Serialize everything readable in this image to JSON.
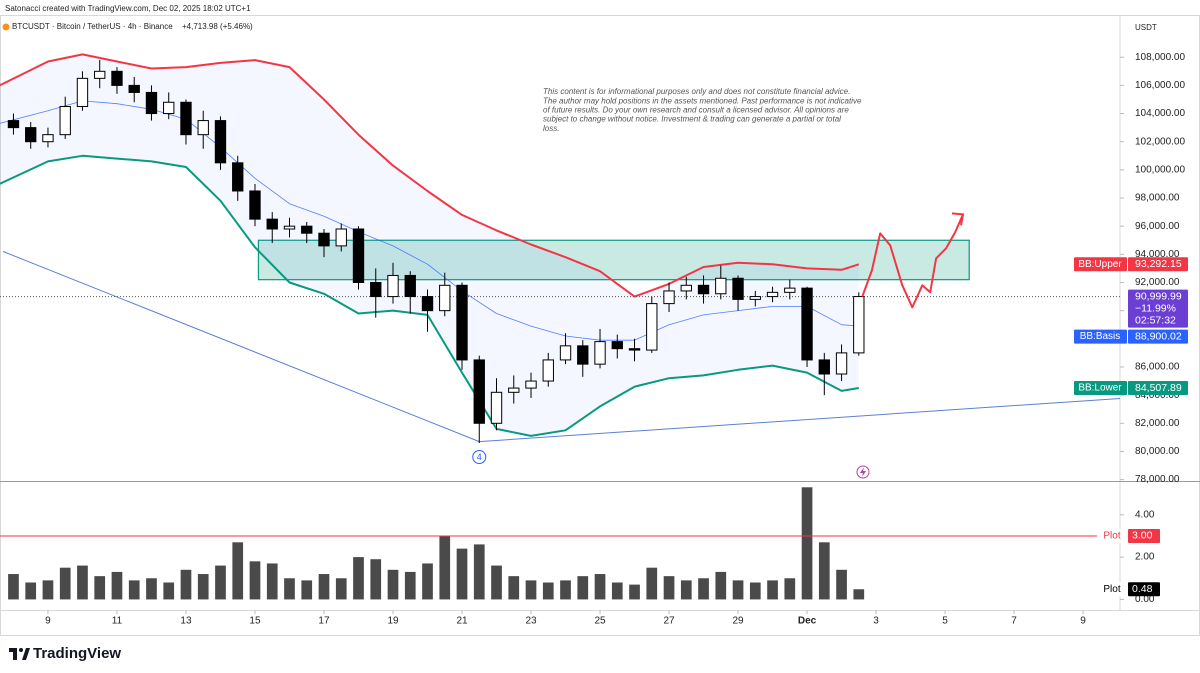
{
  "header": "Satonacci created with TradingView.com, Dec 02, 2025 18:02 UTC+1",
  "symbol": "BTCUSDT · Bitcoin / TetherUS · 4h · Binance",
  "change": "+4,713.98 (+5.46%)",
  "currency": "USDT",
  "footer_brand": "TradingView",
  "disclaimer": [
    "This content is for informational purposes only and does not constitute financial advice.",
    "The author may hold positions in the assets mentioned. Past performance is not indicative",
    "of future results. Do your own research and consult a licensed advisor. All opinions are",
    "subject to change without notice. Investment & trading can generate a partial or total",
    "loss."
  ],
  "chart_data": [
    {
      "type": "candlestick",
      "xlim": [
        7.61,
        40.07
      ],
      "ylim": [
        77900,
        111000
      ],
      "yticks": [
        {
          "value": 108000,
          "label": "108,000.00"
        },
        {
          "value": 106000,
          "label": "106,000.00"
        },
        {
          "value": 104000,
          "label": "104,000.00"
        },
        {
          "value": 102000,
          "label": "102,000.00"
        },
        {
          "value": 100000,
          "label": "100,000.00"
        },
        {
          "value": 98000,
          "label": "98,000.00"
        },
        {
          "value": 96000,
          "label": "96,000.00"
        },
        {
          "value": 94000,
          "label": "94,000.00"
        },
        {
          "value": 92000,
          "label": "92,000.00"
        },
        {
          "value": 90000,
          "label": "90,000.00"
        },
        {
          "value": 88000,
          "label": "88,000.00"
        },
        {
          "value": 86000,
          "label": "86,000.00"
        },
        {
          "value": 84000,
          "label": "84,000.00"
        },
        {
          "value": 82000,
          "label": "82,000.00"
        },
        {
          "value": 80000,
          "label": "80,000.00"
        },
        {
          "value": 78000,
          "label": "78,000.00"
        }
      ],
      "candles": {
        "up_color": "#ffffff",
        "down_color": "#000000",
        "x": [
          8,
          8.5,
          9,
          9.5,
          10,
          10.5,
          11,
          11.5,
          12,
          12.5,
          13,
          13.5,
          14,
          14.5,
          15,
          15.5,
          16,
          16.5,
          17,
          17.5,
          18,
          18.5,
          19,
          19.5,
          20,
          20.5,
          21,
          21.5,
          22,
          22.5,
          23,
          23.5,
          24,
          24.5,
          25,
          25.5,
          26,
          26.5,
          27,
          27.5,
          28,
          28.5,
          29,
          29.5,
          30,
          30.5,
          31,
          31.5,
          32,
          32.5
        ],
        "open": [
          103500,
          103000,
          102000,
          102500,
          104500,
          106500,
          107000,
          106000,
          105500,
          104000,
          104800,
          102500,
          103500,
          100500,
          98500,
          96500,
          95800,
          96000,
          95500,
          94600,
          95800,
          92000,
          91000,
          92500,
          91000,
          90000,
          91800,
          86500,
          82000,
          84200,
          84500,
          85000,
          86500,
          87500,
          86200,
          87800,
          87300,
          87200,
          90500,
          91400,
          91800,
          91200,
          92300,
          90800,
          91000,
          91300,
          91600,
          86500,
          85500,
          87000
        ],
        "high": [
          104000,
          103400,
          103000,
          105200,
          107000,
          107800,
          107300,
          106600,
          106000,
          105500,
          105000,
          104200,
          103800,
          101000,
          99000,
          97000,
          96600,
          96300,
          95800,
          96200,
          96000,
          93000,
          93400,
          92800,
          91500,
          92700,
          92000,
          86800,
          85200,
          85400,
          85600,
          87000,
          88400,
          87900,
          88700,
          88300,
          88000,
          91000,
          92000,
          92400,
          92500,
          93200,
          92500,
          91400,
          91700,
          92200,
          91700,
          87000,
          87600,
          91300
        ],
        "low": [
          102500,
          101500,
          101600,
          102200,
          104200,
          105800,
          105400,
          104800,
          103500,
          103600,
          101800,
          101500,
          100000,
          97800,
          96000,
          94800,
          95200,
          94800,
          93800,
          94200,
          91500,
          89500,
          90500,
          89800,
          88500,
          89600,
          85800,
          80600,
          81500,
          83400,
          83800,
          84600,
          86200,
          85300,
          85900,
          86600,
          86400,
          87000,
          89900,
          90800,
          90500,
          90800,
          90000,
          90300,
          90600,
          90800,
          86000,
          84000,
          85000,
          86800
        ],
        "close": [
          103000,
          102000,
          102500,
          104500,
          106500,
          107000,
          106000,
          105500,
          104000,
          104800,
          102500,
          103500,
          100500,
          98500,
          96500,
          95800,
          96000,
          95500,
          94600,
          95800,
          92000,
          91000,
          92500,
          91000,
          90000,
          91800,
          86500,
          82000,
          84200,
          84500,
          85000,
          86500,
          87500,
          86200,
          87800,
          87300,
          87200,
          90500,
          91400,
          91800,
          91200,
          92300,
          90800,
          91000,
          91300,
          91600,
          86500,
          85500,
          87000,
          90999.99
        ]
      },
      "last_price": {
        "value": 90999.99,
        "label": "90,999.99",
        "change": "−11.99%",
        "countdown": "02:57:32",
        "color": "#6b3fd4"
      },
      "series": [
        {
          "name": "BB:Upper",
          "color": "#f23645",
          "last_value_label": "93,292.15",
          "x": [
            7.6,
            9,
            10,
            11,
            12,
            13,
            14,
            15,
            16,
            17,
            18,
            19,
            20,
            21,
            22,
            23,
            24,
            25,
            26,
            27,
            28,
            29,
            30,
            31,
            32,
            32.5
          ],
          "values": [
            106000,
            107700,
            108200,
            107700,
            107200,
            107300,
            107600,
            107800,
            107300,
            105000,
            102500,
            100300,
            98500,
            96800,
            95700,
            94700,
            93800,
            92800,
            91000,
            91900,
            93100,
            93400,
            93300,
            93000,
            92900,
            93292.15
          ]
        },
        {
          "name": "BB:Basis",
          "color": "#2962ff",
          "last_value_label": "88,900.02",
          "x": [
            7.6,
            9,
            10,
            11,
            12,
            13,
            14,
            15,
            16,
            17,
            18,
            19,
            20,
            21,
            22,
            23,
            24,
            25,
            26,
            27,
            28,
            29,
            30,
            31,
            32,
            32.5
          ],
          "values": [
            103300,
            104200,
            104900,
            104700,
            104300,
            103600,
            101600,
            99400,
            97600,
            96700,
            95600,
            94600,
            93300,
            91400,
            89800,
            88900,
            88200,
            87900,
            87900,
            89000,
            89700,
            90000,
            90300,
            90300,
            89000,
            88900.02
          ]
        },
        {
          "name": "BB:Lower",
          "color": "#089981",
          "last_value_label": "84,507.89",
          "x": [
            7.6,
            9,
            10,
            11,
            12,
            13,
            14,
            15,
            16,
            17,
            18,
            19,
            20,
            21,
            22,
            23,
            24,
            25,
            26,
            27,
            28,
            29,
            30,
            31,
            32,
            32.5
          ],
          "values": [
            99000,
            100600,
            101000,
            100800,
            100600,
            100200,
            97800,
            94500,
            92000,
            91200,
            89800,
            90000,
            89700,
            85600,
            81600,
            81100,
            81500,
            83200,
            84600,
            85200,
            85400,
            85800,
            86100,
            85600,
            84300,
            84507.89
          ]
        }
      ],
      "zone": {
        "x": [
          15.1,
          35.7
        ],
        "y": [
          92200,
          95000
        ],
        "color": "#089981"
      },
      "trendlines": [
        {
          "x": [
            7.7,
            21.5
          ],
          "y": [
            94200,
            80700
          ],
          "color": "#5b7fd6"
        },
        {
          "x": [
            21.5,
            40.07
          ],
          "y": [
            80700,
            83760
          ],
          "color": "#5b7fd6"
        }
      ],
      "projection": {
        "color": "#f23645",
        "x": [
          32.6,
          32.88,
          33.12,
          33.41,
          33.76,
          34.05,
          34.34,
          34.57,
          34.74,
          35.03,
          35.29,
          35.52
        ],
        "y": [
          91000,
          92860,
          95490,
          94640,
          91800,
          90230,
          91800,
          91300,
          93710,
          94430,
          95560,
          96840
        ]
      },
      "annotations": [
        {
          "text": "4"
        }
      ]
    },
    {
      "type": "bar",
      "xlim": [
        7.61,
        40.07
      ],
      "ylim": [
        -0.5,
        5.55
      ],
      "yticks": [
        {
          "value": 4,
          "label": "4.00"
        },
        {
          "value": 2,
          "label": "2.00"
        },
        {
          "value": 0,
          "label": "0.00"
        }
      ],
      "xticks": [
        9,
        11,
        13,
        15,
        17,
        19,
        21,
        23,
        25,
        27,
        29,
        {
          "value": 31,
          "label": "Dec"
        },
        {
          "value": 33,
          "label": "3"
        },
        {
          "value": 35,
          "label": "5"
        },
        {
          "value": 37,
          "label": "7"
        },
        {
          "value": 39,
          "label": "9"
        }
      ],
      "series": [
        {
          "name": "Plot",
          "color": "#4a4a4a",
          "label_color": "#000000",
          "last_value_label": "0.48",
          "x": [
            8,
            8.5,
            9,
            9.5,
            10,
            10.5,
            11,
            11.5,
            12,
            12.5,
            13,
            13.5,
            14,
            14.5,
            15,
            15.5,
            16,
            16.5,
            17,
            17.5,
            18,
            18.5,
            19,
            19.5,
            20,
            20.5,
            21,
            21.5,
            22,
            22.5,
            23,
            23.5,
            24,
            24.5,
            25,
            25.5,
            26,
            26.5,
            27,
            27.5,
            28,
            28.5,
            29,
            29.5,
            30,
            30.5,
            31,
            31.5,
            32,
            32.5
          ],
          "values": [
            1.2,
            0.8,
            0.9,
            1.5,
            1.6,
            1.1,
            1.3,
            0.9,
            1.0,
            0.8,
            1.4,
            1.2,
            1.6,
            2.7,
            1.8,
            1.7,
            1.0,
            0.9,
            1.2,
            1.0,
            2.0,
            1.9,
            1.4,
            1.3,
            1.7,
            3.0,
            2.4,
            2.6,
            1.6,
            1.1,
            0.9,
            0.8,
            0.9,
            1.1,
            1.2,
            0.8,
            0.7,
            1.5,
            1.1,
            0.9,
            1.0,
            1.3,
            0.9,
            0.8,
            0.9,
            1.0,
            5.3,
            2.7,
            1.4,
            0.48
          ]
        }
      ],
      "hline": {
        "name": "Plot",
        "value": 3,
        "label": "3.00",
        "color": "#f23645"
      }
    }
  ]
}
